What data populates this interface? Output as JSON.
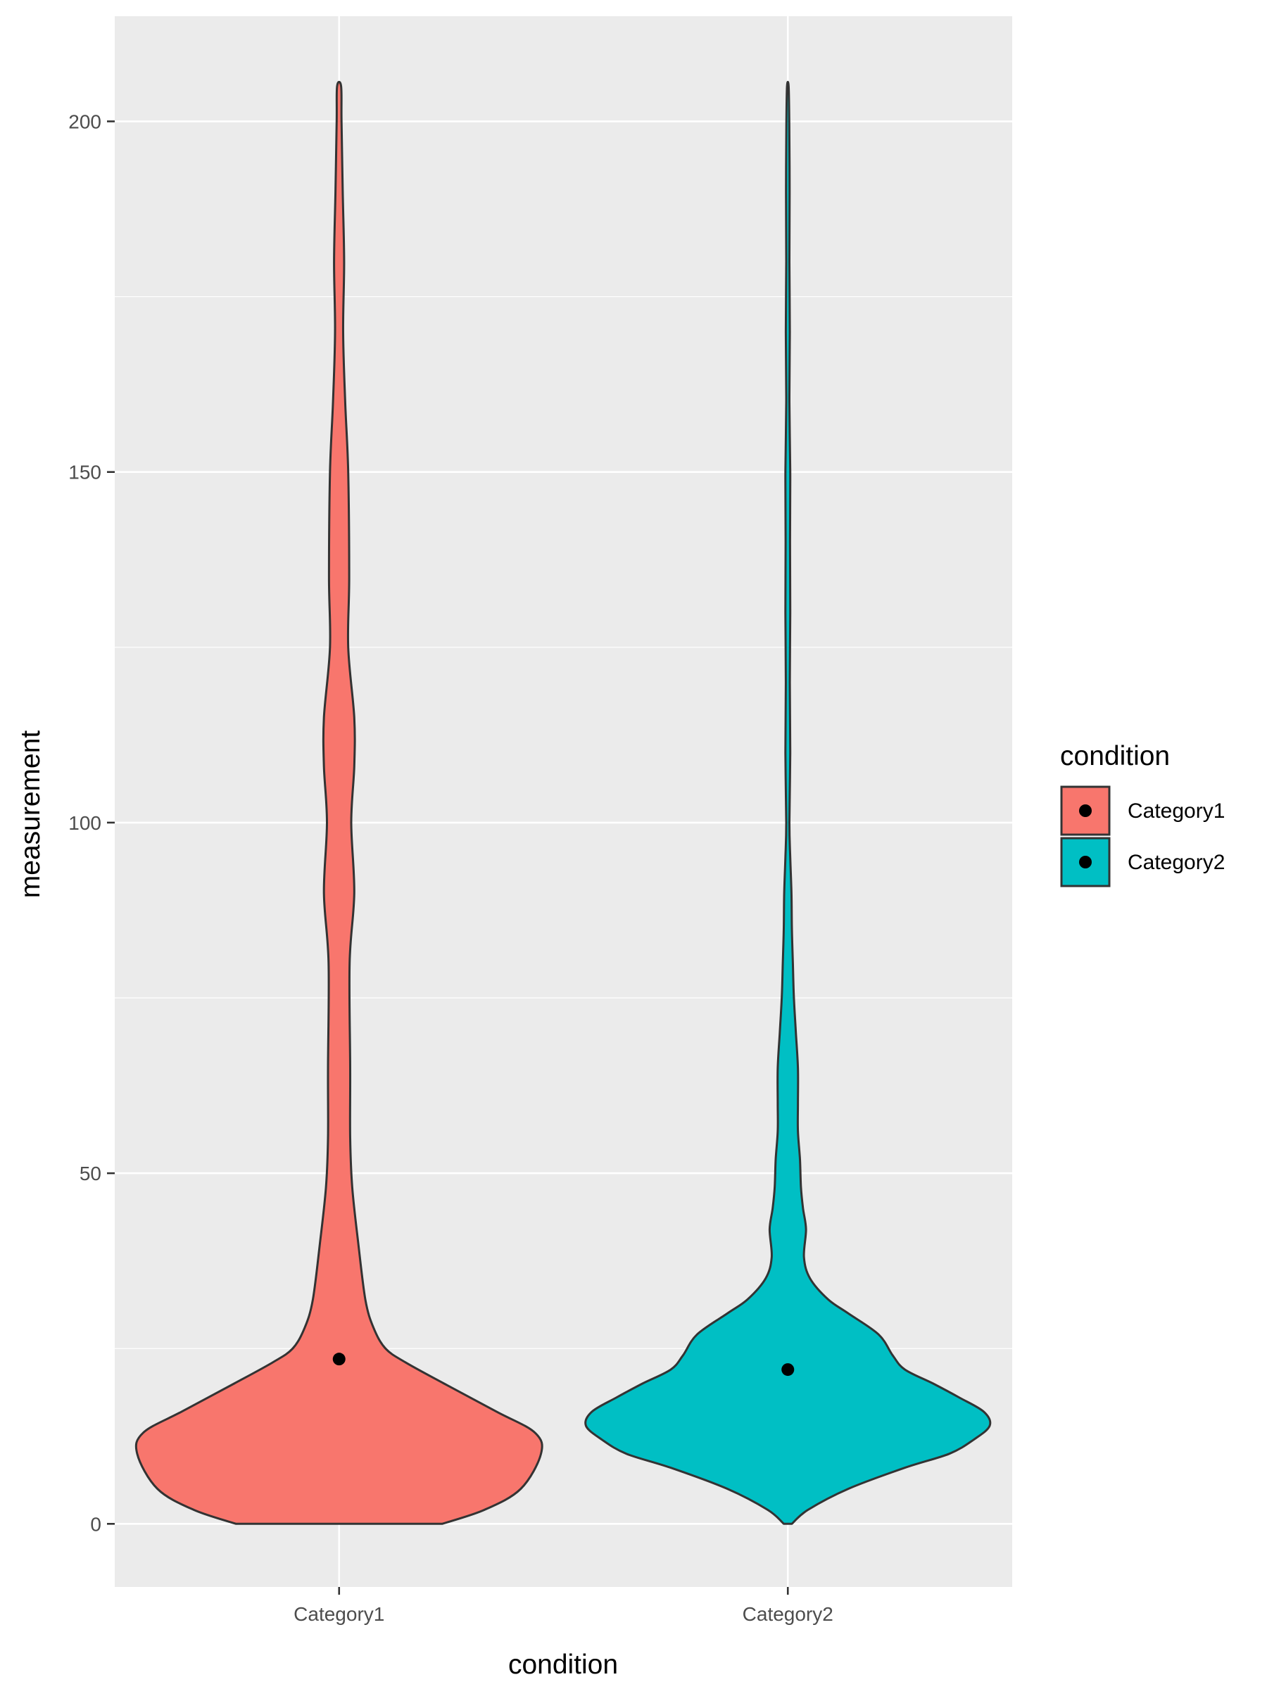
{
  "chart_data": {
    "type": "violin",
    "xlabel": "condition",
    "ylabel": "measurement",
    "ylim": [
      -9,
      215
    ],
    "yticks": [
      0,
      50,
      100,
      150,
      200
    ],
    "categories": [
      "Category1",
      "Category2"
    ],
    "legend": {
      "title": "condition",
      "placement": "right",
      "entries": [
        "Category1",
        "Category2"
      ]
    },
    "grid": true,
    "series": [
      {
        "name": "Category1",
        "color": "#F8766D",
        "mean": 23.5,
        "range": [
          0,
          205
        ],
        "density": [
          [
            0,
            0.51
          ],
          [
            2,
            0.72
          ],
          [
            5,
            0.9
          ],
          [
            10,
            1.0
          ],
          [
            13,
            0.97
          ],
          [
            16,
            0.78
          ],
          [
            20,
            0.52
          ],
          [
            23,
            0.33
          ],
          [
            25,
            0.23
          ],
          [
            28,
            0.17
          ],
          [
            32,
            0.13
          ],
          [
            40,
            0.095
          ],
          [
            48,
            0.065
          ],
          [
            55,
            0.055
          ],
          [
            65,
            0.055
          ],
          [
            80,
            0.052
          ],
          [
            90,
            0.075
          ],
          [
            100,
            0.06
          ],
          [
            108,
            0.075
          ],
          [
            115,
            0.075
          ],
          [
            125,
            0.045
          ],
          [
            135,
            0.05
          ],
          [
            150,
            0.045
          ],
          [
            160,
            0.03
          ],
          [
            170,
            0.02
          ],
          [
            180,
            0.025
          ],
          [
            190,
            0.018
          ],
          [
            200,
            0.012
          ],
          [
            205,
            0.01
          ]
        ]
      },
      {
        "name": "Category2",
        "color": "#00BFC4",
        "mean": 22,
        "range": [
          0,
          205
        ],
        "density": [
          [
            0,
            0.02
          ],
          [
            2,
            0.1
          ],
          [
            5,
            0.3
          ],
          [
            8,
            0.58
          ],
          [
            10,
            0.8
          ],
          [
            12,
            0.92
          ],
          [
            14,
            1.0
          ],
          [
            16,
            0.97
          ],
          [
            18,
            0.85
          ],
          [
            20,
            0.72
          ],
          [
            22,
            0.58
          ],
          [
            24,
            0.52
          ],
          [
            27,
            0.45
          ],
          [
            30,
            0.3
          ],
          [
            32,
            0.2
          ],
          [
            35,
            0.11
          ],
          [
            38,
            0.08
          ],
          [
            42,
            0.09
          ],
          [
            45,
            0.075
          ],
          [
            48,
            0.065
          ],
          [
            52,
            0.06
          ],
          [
            56,
            0.05
          ],
          [
            60,
            0.05
          ],
          [
            65,
            0.05
          ],
          [
            70,
            0.04
          ],
          [
            75,
            0.03
          ],
          [
            80,
            0.025
          ],
          [
            85,
            0.02
          ],
          [
            90,
            0.018
          ],
          [
            95,
            0.012
          ],
          [
            100,
            0.008
          ],
          [
            110,
            0.012
          ],
          [
            120,
            0.01
          ],
          [
            130,
            0.012
          ],
          [
            140,
            0.011
          ],
          [
            150,
            0.012
          ],
          [
            160,
            0.008
          ],
          [
            170,
            0.01
          ],
          [
            180,
            0.008
          ],
          [
            190,
            0.009
          ],
          [
            200,
            0.007
          ],
          [
            205,
            0.004
          ]
        ]
      }
    ]
  }
}
